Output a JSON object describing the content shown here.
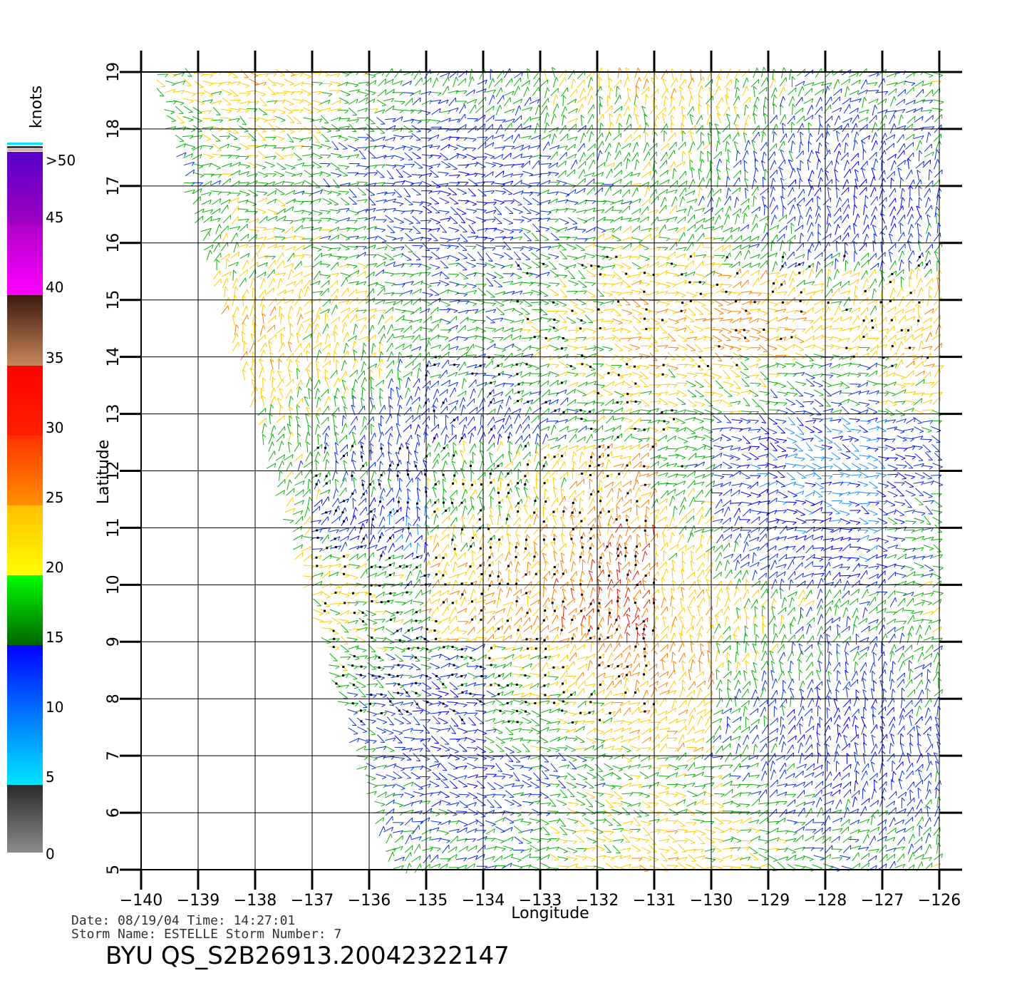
{
  "axes": {
    "x_title": "Longitude",
    "y_title": "Latitude",
    "lon_min": -140,
    "lon_max": -126,
    "lat_min": 5,
    "lat_max": 19,
    "lon_ticks": [
      "−140",
      "−139",
      "−138",
      "−137",
      "−136",
      "−135",
      "−134",
      "−133",
      "−132",
      "−131",
      "−130",
      "−129",
      "−128",
      "−127",
      "−126"
    ],
    "lat_ticks": [
      "5",
      "6",
      "7",
      "8",
      "9",
      "10",
      "11",
      "12",
      "13",
      "14",
      "15",
      "16",
      "17",
      "18",
      "19"
    ]
  },
  "legend": {
    "title": "knots",
    "bands": [
      {
        "label": "0",
        "colors": [
          "#8c8c8c",
          "#2a2a2a"
        ]
      },
      {
        "label": "5",
        "colors": [
          "#00e5ff",
          "#0077ff"
        ]
      },
      {
        "label": "10",
        "colors": [
          "#0077ff",
          "#0000ff"
        ]
      },
      {
        "label": "15",
        "colors": [
          "#006400",
          "#00ff00"
        ]
      },
      {
        "label": "20",
        "colors": [
          "#ffff00",
          "#ffc000"
        ]
      },
      {
        "label": "25",
        "colors": [
          "#ff9000",
          "#ff3300"
        ]
      },
      {
        "label": "30",
        "colors": [
          "#ff2000",
          "#ff0000"
        ]
      },
      {
        "label": "35",
        "colors": [
          "#c8865a",
          "#3b1a10"
        ]
      },
      {
        "label": "40",
        "colors": [
          "#ff00ff",
          "#b000c8"
        ]
      },
      {
        "label": "45",
        "colors": [
          "#a000c0",
          "#5a00c8"
        ]
      },
      {
        "label": ">50",
        "colors": [
          "#5a00c8",
          "#5a00c8"
        ]
      }
    ]
  },
  "meta": {
    "date_line": "Date: 08/19/04   Time: 14:27:01",
    "storm_line": "Storm Name: ESTELLE   Storm Number: 7",
    "title": "BYU QS_S2B26913.20042322147"
  },
  "colors": {
    "grid": "#000000",
    "rain_flag": "#000000"
  }
}
